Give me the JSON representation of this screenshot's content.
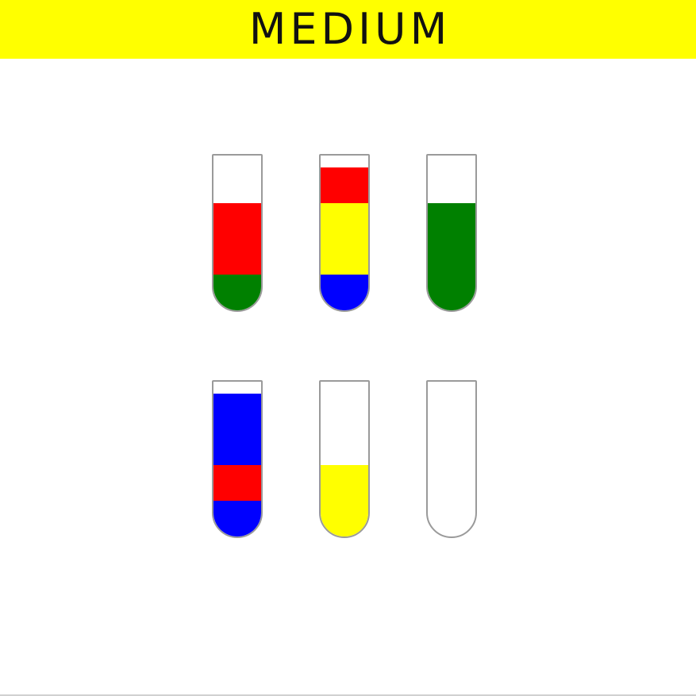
{
  "header": {
    "title": "MEDIUM",
    "background": "#ffff00"
  },
  "colors": {
    "red": "#ff0000",
    "green": "#008000",
    "yellow": "#ffff00",
    "blue": "#0000ff"
  },
  "tube_capacity": 4,
  "tubes": [
    {
      "id": "tube-1",
      "layers_bottom_to_top": [
        "green",
        "red",
        "red"
      ]
    },
    {
      "id": "tube-2",
      "layers_bottom_to_top": [
        "blue",
        "yellow",
        "yellow",
        "red"
      ]
    },
    {
      "id": "tube-3",
      "layers_bottom_to_top": [
        "green",
        "green",
        "green"
      ]
    },
    {
      "id": "tube-4",
      "layers_bottom_to_top": [
        "blue",
        "red",
        "blue",
        "blue"
      ]
    },
    {
      "id": "tube-5",
      "layers_bottom_to_top": [
        "yellow",
        "yellow"
      ]
    },
    {
      "id": "tube-6",
      "layers_bottom_to_top": []
    }
  ]
}
